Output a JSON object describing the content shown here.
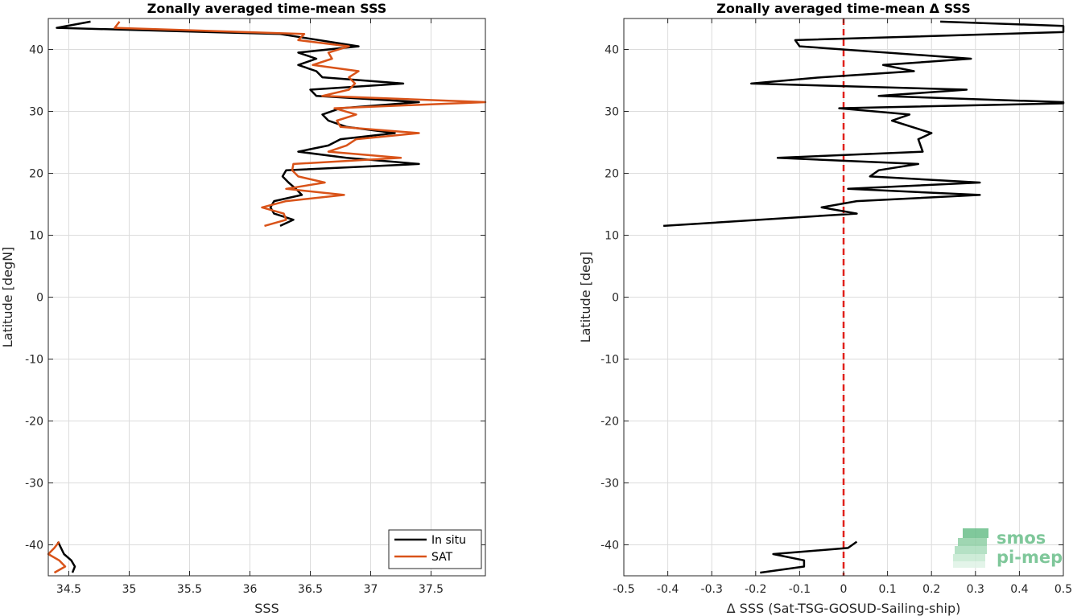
{
  "chart_data": [
    {
      "type": "line",
      "title": "Zonally averaged time-mean SSS",
      "xlabel": "SSS",
      "ylabel": "Latitude [degN]",
      "xlim": [
        34.33,
        37.95
      ],
      "ylim": [
        -45,
        45
      ],
      "xticks": [
        34.5,
        35,
        35.5,
        36,
        36.5,
        37,
        37.5
      ],
      "xtick_labels": [
        "34.5",
        "35",
        "35.5",
        "36",
        "36.5",
        "37",
        "37.5"
      ],
      "yticks": [
        -40,
        -30,
        -20,
        -10,
        0,
        10,
        20,
        30,
        40
      ],
      "ytick_labels": [
        "-40",
        "-30",
        "-20",
        "-10",
        "0",
        "10",
        "20",
        "30",
        "40"
      ],
      "grid": true,
      "legend": "bottom-right",
      "series": [
        {
          "name": "In situ",
          "color": "#000000",
          "segments": [
            [
              [
                34.68,
                44.5
              ],
              [
                34.4,
                43.5
              ],
              [
                36.25,
                42.5
              ],
              [
                36.9,
                40.5
              ],
              [
                36.4,
                39.5
              ],
              [
                36.55,
                38.5
              ],
              [
                36.4,
                37.5
              ],
              [
                36.55,
                36.5
              ],
              [
                36.6,
                35.5
              ],
              [
                37.27,
                34.5
              ],
              [
                36.5,
                33.5
              ],
              [
                36.55,
                32.5
              ],
              [
                37.4,
                31.5
              ],
              [
                36.75,
                30.5
              ],
              [
                36.6,
                29.5
              ],
              [
                36.65,
                28.5
              ],
              [
                36.8,
                27.5
              ],
              [
                37.2,
                26.5
              ],
              [
                36.75,
                25.5
              ],
              [
                36.65,
                24.5
              ],
              [
                36.4,
                23.5
              ],
              [
                36.8,
                22.5
              ],
              [
                37.4,
                21.5
              ],
              [
                36.3,
                20.5
              ],
              [
                36.27,
                19.5
              ],
              [
                36.32,
                18.5
              ],
              [
                36.38,
                17.5
              ],
              [
                36.43,
                16.5
              ],
              [
                36.2,
                15.5
              ],
              [
                36.17,
                14.5
              ],
              [
                36.2,
                13.5
              ],
              [
                36.36,
                12.5
              ],
              [
                36.25,
                11.5
              ]
            ],
            [
              [
                34.41,
                -39.5
              ],
              [
                34.46,
                -41.5
              ],
              [
                34.52,
                -42.5
              ],
              [
                34.55,
                -43.5
              ],
              [
                34.53,
                -44.5
              ]
            ]
          ]
        },
        {
          "name": "SAT",
          "color": "#d95319",
          "segments": [
            [
              [
                34.92,
                44.5
              ],
              [
                34.88,
                43.5
              ],
              [
                36.45,
                42.5
              ],
              [
                36.4,
                41.5
              ],
              [
                36.82,
                40.5
              ],
              [
                36.65,
                39.5
              ],
              [
                36.68,
                38.5
              ],
              [
                36.52,
                37.5
              ],
              [
                36.9,
                36.5
              ],
              [
                36.82,
                35.5
              ],
              [
                36.87,
                34.5
              ],
              [
                36.82,
                33.5
              ],
              [
                36.6,
                32.5
              ],
              [
                37.95,
                31.5
              ],
              [
                36.7,
                30.5
              ],
              [
                36.88,
                29.5
              ],
              [
                36.72,
                28.5
              ],
              [
                36.75,
                27.5
              ],
              [
                37.4,
                26.5
              ],
              [
                36.88,
                25.5
              ],
              [
                36.8,
                24.5
              ],
              [
                36.65,
                23.5
              ],
              [
                37.25,
                22.5
              ],
              [
                36.36,
                21.5
              ],
              [
                36.35,
                20.5
              ],
              [
                36.4,
                19.5
              ],
              [
                36.62,
                18.5
              ],
              [
                36.3,
                17.5
              ],
              [
                36.78,
                16.5
              ],
              [
                36.3,
                15.5
              ],
              [
                36.1,
                14.5
              ],
              [
                36.28,
                13.5
              ],
              [
                36.3,
                12.5
              ],
              [
                36.12,
                11.5
              ]
            ],
            [
              [
                34.42,
                -39.5
              ],
              [
                34.38,
                -40.5
              ],
              [
                34.33,
                -41.5
              ],
              [
                34.42,
                -42.5
              ],
              [
                34.47,
                -43.5
              ],
              [
                34.38,
                -44.5
              ]
            ]
          ]
        }
      ]
    },
    {
      "type": "line",
      "title": "Zonally averaged time-mean Δ SSS",
      "xlabel": "Δ SSS (Sat-TSG-GOSUD-Sailing-ship)",
      "ylabel": "Latitude [deg]",
      "xlim": [
        -0.5,
        0.5
      ],
      "ylim": [
        -45,
        45
      ],
      "xticks": [
        -0.5,
        -0.4,
        -0.3,
        -0.2,
        -0.1,
        0,
        0.1,
        0.2,
        0.3,
        0.4,
        0.5
      ],
      "xtick_labels": [
        "-0.5",
        "-0.4",
        "-0.3",
        "-0.2",
        "-0.1",
        "0",
        "0.1",
        "0.2",
        "0.3",
        "0.4",
        "0.5"
      ],
      "yticks": [
        -40,
        -30,
        -20,
        -10,
        0,
        10,
        20,
        30,
        40
      ],
      "ytick_labels": [
        "-40",
        "-30",
        "-20",
        "-10",
        "0",
        "10",
        "20",
        "30",
        "40"
      ],
      "grid": true,
      "reference_line": {
        "x": 0,
        "color": "#e0211b",
        "style": "dashed"
      },
      "series": [
        {
          "color": "#000000",
          "segments": [
            [
              [
                0.22,
                44.5
              ],
              [
                0.5,
                43.8
              ],
              [
                0.5,
                43.3
              ],
              [
                0.5,
                42.8
              ],
              [
                -0.11,
                41.5
              ],
              [
                -0.1,
                40.5
              ],
              [
                0.29,
                38.5
              ],
              [
                0.09,
                37.5
              ],
              [
                0.16,
                36.5
              ],
              [
                -0.05,
                35.5
              ],
              [
                -0.21,
                34.5
              ],
              [
                0.28,
                33.5
              ],
              [
                0.08,
                32.5
              ],
              [
                0.5,
                31.5
              ],
              [
                0.5,
                31.3
              ],
              [
                -0.01,
                30.5
              ],
              [
                0.15,
                29.5
              ],
              [
                0.11,
                28.5
              ],
              [
                0.2,
                26.5
              ],
              [
                0.17,
                25.5
              ],
              [
                0.18,
                23.5
              ],
              [
                -0.15,
                22.5
              ],
              [
                0.17,
                21.5
              ],
              [
                0.08,
                20.5
              ],
              [
                0.06,
                19.5
              ],
              [
                0.31,
                18.5
              ],
              [
                0.01,
                17.5
              ],
              [
                0.31,
                16.5
              ],
              [
                0.03,
                15.5
              ],
              [
                -0.05,
                14.5
              ],
              [
                0.03,
                13.5
              ],
              [
                -0.41,
                11.5
              ]
            ],
            [
              [
                0.03,
                -39.5
              ],
              [
                0.01,
                -40.5
              ],
              [
                -0.16,
                -41.5
              ],
              [
                -0.09,
                -42.5
              ],
              [
                -0.09,
                -43.5
              ],
              [
                -0.19,
                -44.5
              ]
            ]
          ]
        }
      ]
    }
  ],
  "legend": {
    "items": [
      "In situ",
      "SAT"
    ]
  },
  "logo": {
    "line1": "smos",
    "line2": "pi-mep",
    "color": "#7fc79a"
  }
}
